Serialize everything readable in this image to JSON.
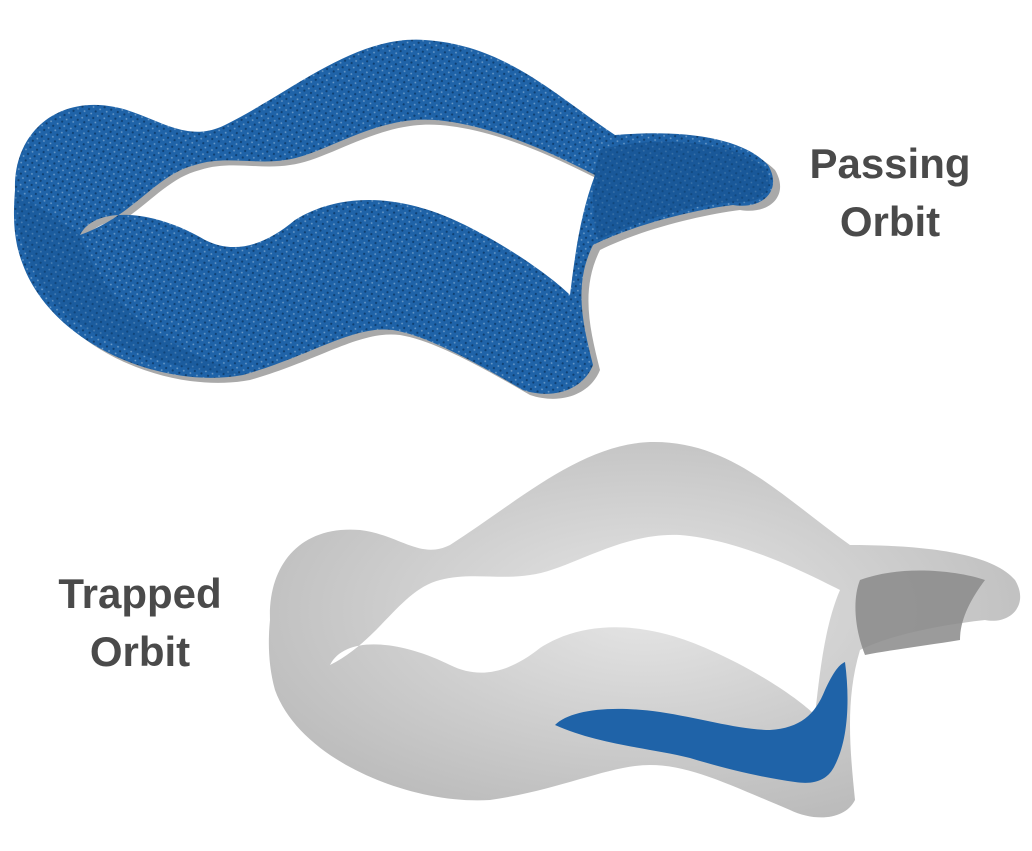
{
  "labels": {
    "passing": {
      "line1": "Passing",
      "line2": "Orbit"
    },
    "trapped": {
      "line1": "Trapped",
      "line2": "Orbit"
    }
  },
  "colors": {
    "orbit_blue": "#1f63a8",
    "orbit_blue_dark": "#14508c",
    "surface_gray": "#c4c4c4",
    "surface_gray_dark": "#8a8a8a",
    "label_text": "#4a4a4a",
    "background": "#ffffff"
  }
}
